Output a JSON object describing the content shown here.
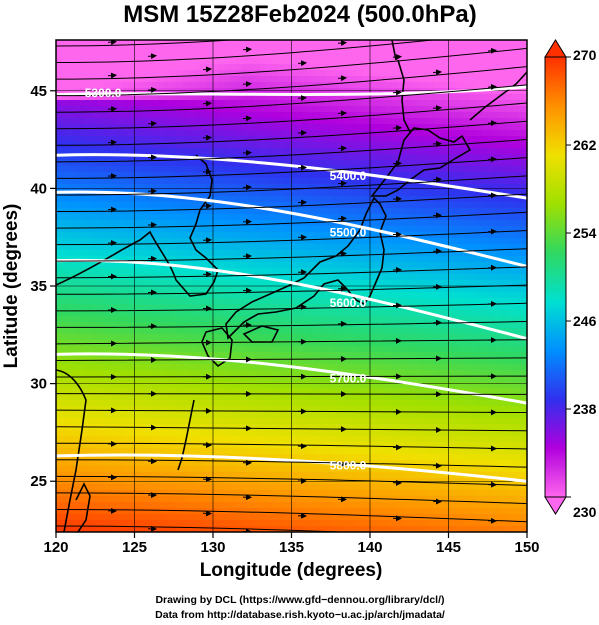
{
  "title": "MSM 15Z28Feb2024 (500.0hPa)",
  "x_axis": {
    "label": "Longitude (degrees)",
    "range": [
      120,
      150
    ],
    "ticks": [
      "120",
      "125",
      "130",
      "135",
      "140",
      "145",
      "150"
    ]
  },
  "y_axis": {
    "label": "Latitude  (degrees)",
    "range": [
      22.4,
      47.6
    ],
    "ticks": [
      "25",
      "30",
      "35",
      "40",
      "45"
    ]
  },
  "colorbar": {
    "range": [
      230,
      270
    ],
    "ticks": [
      "230",
      "238",
      "246",
      "254",
      "262",
      "270"
    ],
    "colors": [
      "#ff66ee",
      "#b000dd",
      "#3030ee",
      "#0090ff",
      "#00e0d0",
      "#30d860",
      "#a0e000",
      "#f0e000",
      "#ff9000",
      "#ff3000"
    ]
  },
  "contours": [
    {
      "label": "5300.0",
      "lat_west": 44.8,
      "lat_east": 45.2
    },
    {
      "label": "5400.0",
      "lat_west": 41.7,
      "lat_east": 39.5
    },
    {
      "label": "5500.0",
      "lat_west": 39.8,
      "lat_east": 36.0
    },
    {
      "label": "5600.0",
      "lat_west": 36.3,
      "lat_east": 32.3
    },
    {
      "label": "5700.0",
      "lat_west": 31.5,
      "lat_east": 29.0
    },
    {
      "label": "5800.0",
      "lat_west": 26.3,
      "lat_east": 25.0
    }
  ],
  "credits": {
    "line1": "Drawing by DCL (https://www.gfd−dennou.org/library/dcl/)",
    "line2": "Data from http://database.rish.kyoto−u.ac.jp/arch/jmadata/"
  }
}
